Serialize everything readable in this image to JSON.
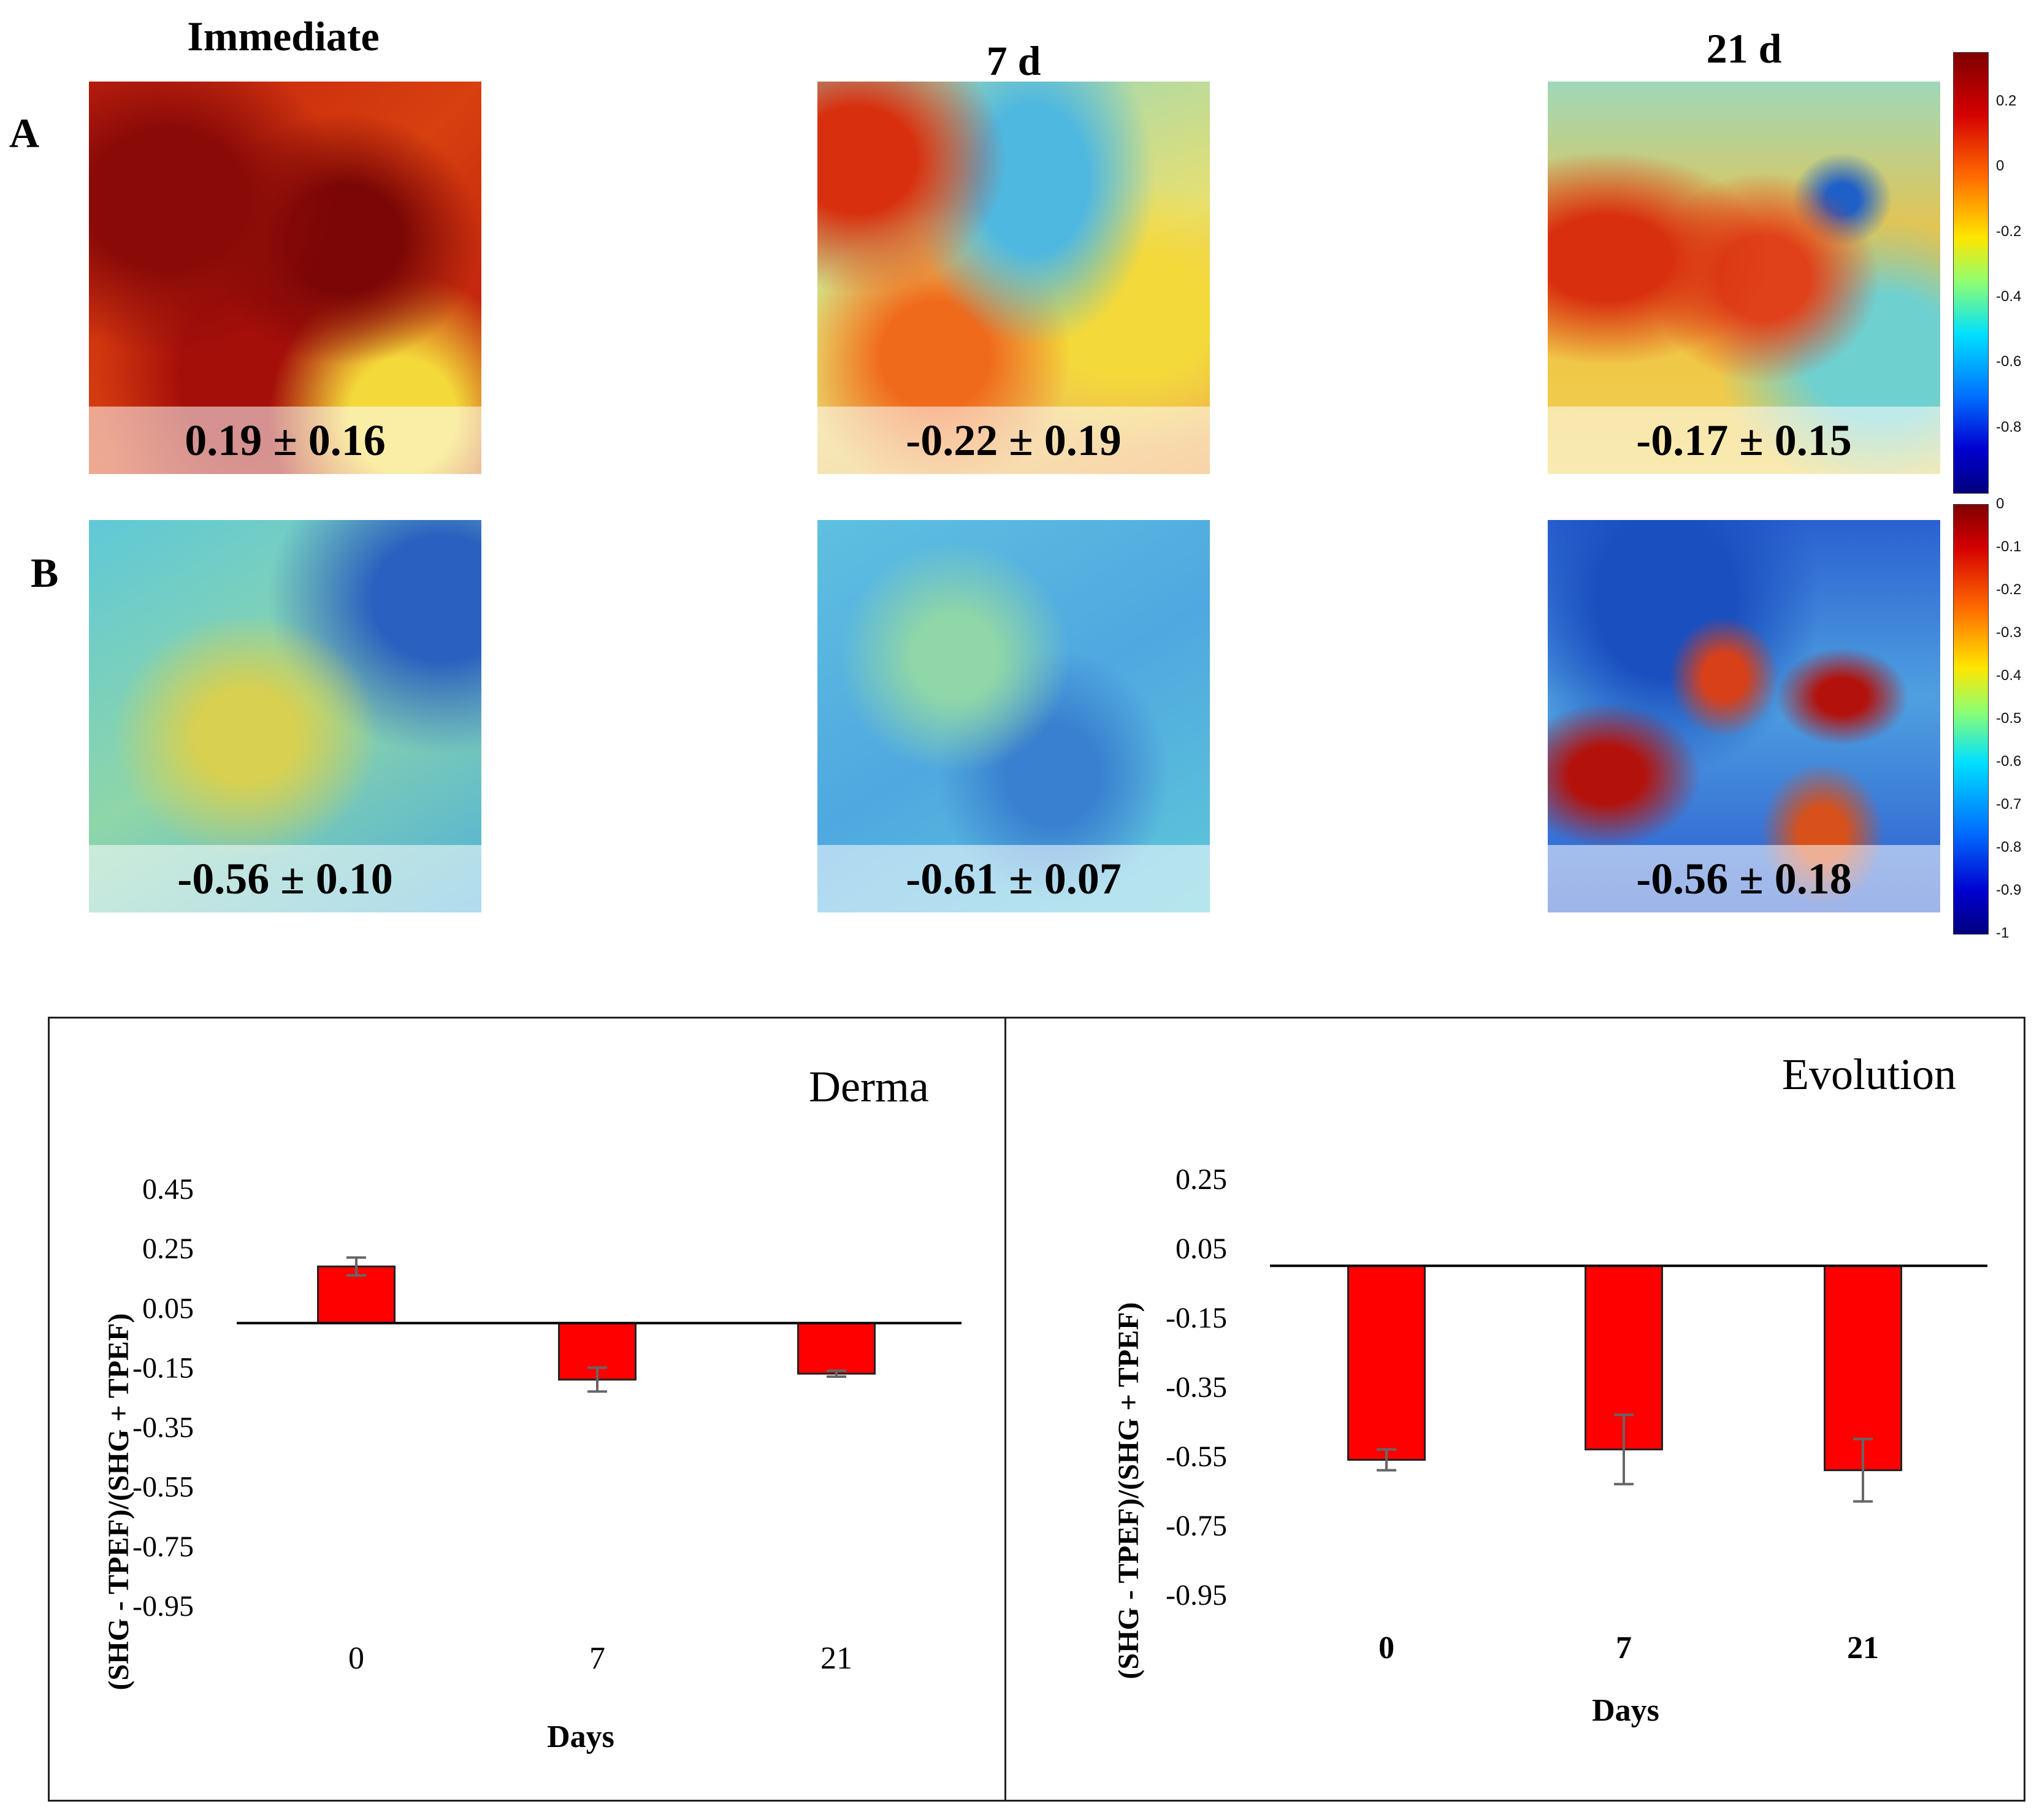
{
  "figure": {
    "columns": [
      "Immediate",
      "7 d",
      "21 d"
    ],
    "rows": [
      "A",
      "B"
    ],
    "tiles": [
      {
        "label": "0.19 ± 0.16",
        "mean": 0.19,
        "sd": 0.16
      },
      {
        "label": "-0.22 ± 0.19",
        "mean": -0.22,
        "sd": 0.19
      },
      {
        "label": "-0.17 ± 0.15",
        "mean": -0.17,
        "sd": 0.15
      },
      {
        "label": "-0.56 ± 0.10",
        "mean": -0.56,
        "sd": 0.1
      },
      {
        "label": "-0.61 ± 0.07",
        "mean": -0.61,
        "sd": 0.07
      },
      {
        "label": "-0.56 ± 0.18",
        "mean": -0.56,
        "sd": 0.18
      }
    ],
    "colorbar_a": {
      "ticks": [
        "0.2",
        "0",
        "-0.2",
        "-0.4",
        "-0.6",
        "-0.8"
      ],
      "range": [
        -1,
        0.35
      ]
    },
    "colorbar_b": {
      "ticks": [
        "0",
        "-0.1",
        "-0.2",
        "-0.3",
        "-0.4",
        "-0.5",
        "-0.6",
        "-0.7",
        "-0.8",
        "-0.9",
        "-1"
      ],
      "range": [
        -1,
        0
      ]
    },
    "colors": {
      "hot": "#b3120c",
      "warm": "#f06a1c",
      "mid": "#f4d93a",
      "cool": "#5fc8d8",
      "cold": "#1f5fc8",
      "deep": "#0a0a8a"
    }
  },
  "chart_data": [
    {
      "type": "bar",
      "title": "Derma",
      "xlabel": "Days",
      "ylabel": "(SHG - TPEF)/(SHG + TPEF)",
      "categories": [
        "0",
        "7",
        "21"
      ],
      "values": [
        0.19,
        -0.19,
        -0.17
      ],
      "errors": [
        0.03,
        0.04,
        0.01
      ],
      "yticks": [
        "0.45",
        "0.25",
        "0.05",
        "-0.15",
        "-0.35",
        "-0.55",
        "-0.75",
        "-0.95"
      ],
      "ylim": [
        -0.95,
        0.45
      ],
      "bar_color": "#ff0000"
    },
    {
      "type": "bar",
      "title": "Evolution",
      "xlabel": "Days",
      "ylabel": "(SHG - TPEF)/(SHG + TPEF)",
      "categories": [
        "0",
        "7",
        "21"
      ],
      "values": [
        -0.56,
        -0.53,
        -0.59
      ],
      "errors": [
        0.03,
        0.1,
        0.09
      ],
      "yticks": [
        "0.25",
        "0.05",
        "-0.15",
        "-0.35",
        "-0.55",
        "-0.75",
        "-0.95"
      ],
      "ylim": [
        -0.95,
        0.25
      ],
      "bar_color": "#ff0000"
    }
  ]
}
